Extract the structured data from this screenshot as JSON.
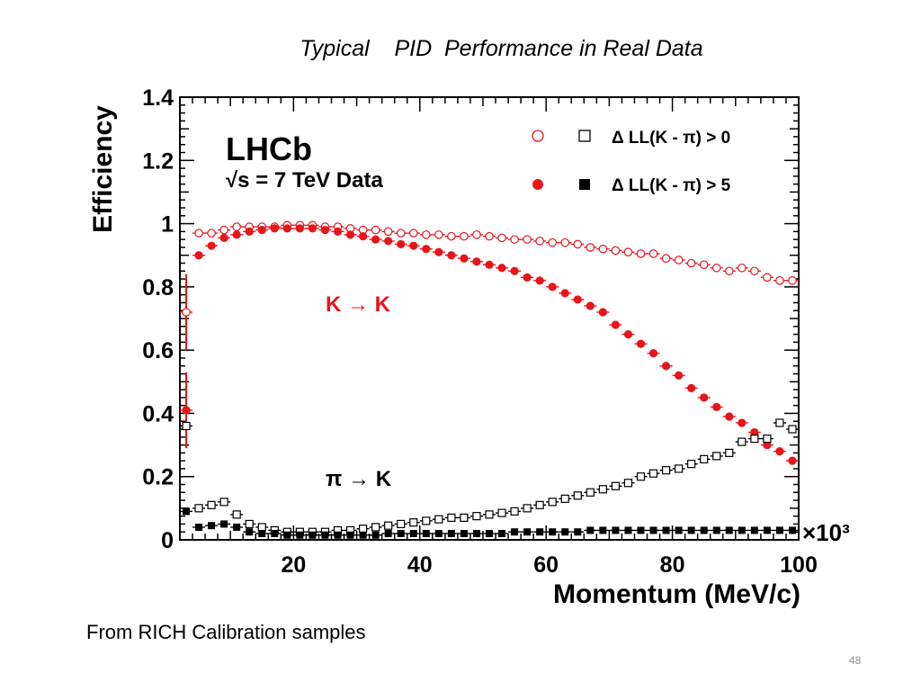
{
  "slide": {
    "title": "Typical    PID  Performance in Real Data",
    "footer": "From RICH Calibration samples",
    "page_number": "48"
  },
  "chart_data": {
    "type": "scatter",
    "xlabel": "Momentum (MeV/c)",
    "ylabel": "Efficiency",
    "x_scale_label": "×10³",
    "xlim": [
      2,
      100
    ],
    "ylim": [
      0,
      1.4
    ],
    "x_ticks": [
      20,
      40,
      60,
      80,
      100
    ],
    "x_tick_labels": [
      "20",
      "40",
      "60",
      "80",
      "100"
    ],
    "y_ticks": [
      0,
      0.2,
      0.4,
      0.6,
      0.8,
      1,
      1.2,
      1.4
    ],
    "y_tick_labels": [
      "0",
      "0.2",
      "0.4",
      "0.6",
      "0.8",
      "1",
      "1.2",
      "1.4"
    ],
    "experiment_label": "LHCb",
    "energy_label": "√s = 7 TeV Data",
    "annotations": [
      "K → K",
      "π → K"
    ],
    "legend": {
      "position": "top-right",
      "entries": [
        {
          "label": "Δ LL(K - π) > 0",
          "markers": [
            "open-circle",
            "open-square"
          ]
        },
        {
          "label": "Δ LL(K - π) > 5",
          "markers": [
            "filled-circle",
            "filled-square"
          ]
        }
      ]
    },
    "colors": {
      "kaon": "#e8141a",
      "pion": "#000000"
    },
    "series": [
      {
        "group": "K → K",
        "cut": "Δ LL(K - π) > 0",
        "marker": "open-circle",
        "color": "#e8141a",
        "x": [
          3,
          5,
          7,
          9,
          11,
          13,
          15,
          17,
          19,
          21,
          23,
          25,
          27,
          29,
          31,
          33,
          35,
          37,
          39,
          41,
          43,
          45,
          47,
          49,
          51,
          53,
          55,
          57,
          59,
          61,
          63,
          65,
          67,
          69,
          71,
          73,
          75,
          77,
          79,
          81,
          83,
          85,
          87,
          89,
          91,
          93,
          95,
          97,
          99
        ],
        "y": [
          0.72,
          0.97,
          0.97,
          0.98,
          0.99,
          0.99,
          0.99,
          0.99,
          0.995,
          0.995,
          0.995,
          0.99,
          0.99,
          0.985,
          0.98,
          0.98,
          0.975,
          0.97,
          0.97,
          0.965,
          0.965,
          0.96,
          0.96,
          0.965,
          0.96,
          0.955,
          0.95,
          0.95,
          0.945,
          0.94,
          0.94,
          0.935,
          0.925,
          0.92,
          0.915,
          0.91,
          0.905,
          0.905,
          0.89,
          0.885,
          0.875,
          0.87,
          0.86,
          0.85,
          0.86,
          0.85,
          0.83,
          0.82,
          0.82
        ]
      },
      {
        "group": "K → K",
        "cut": "Δ LL(K - π) > 5",
        "marker": "filled-circle",
        "color": "#e8141a",
        "x": [
          3,
          5,
          7,
          9,
          11,
          13,
          15,
          17,
          19,
          21,
          23,
          25,
          27,
          29,
          31,
          33,
          35,
          37,
          39,
          41,
          43,
          45,
          47,
          49,
          51,
          53,
          55,
          57,
          59,
          61,
          63,
          65,
          67,
          69,
          71,
          73,
          75,
          77,
          79,
          81,
          83,
          85,
          87,
          89,
          91,
          93,
          95,
          97,
          99
        ],
        "y": [
          0.41,
          0.9,
          0.93,
          0.955,
          0.965,
          0.975,
          0.98,
          0.985,
          0.985,
          0.985,
          0.985,
          0.98,
          0.975,
          0.965,
          0.96,
          0.95,
          0.945,
          0.935,
          0.93,
          0.92,
          0.91,
          0.9,
          0.89,
          0.88,
          0.87,
          0.86,
          0.85,
          0.83,
          0.82,
          0.8,
          0.78,
          0.76,
          0.74,
          0.72,
          0.68,
          0.65,
          0.62,
          0.59,
          0.55,
          0.52,
          0.48,
          0.45,
          0.42,
          0.39,
          0.37,
          0.34,
          0.3,
          0.28,
          0.25
        ]
      },
      {
        "group": "π → K",
        "cut": "Δ LL(K - π) > 0",
        "marker": "open-square",
        "color": "#000000",
        "x": [
          3,
          5,
          7,
          9,
          11,
          13,
          15,
          17,
          19,
          21,
          23,
          25,
          27,
          29,
          31,
          33,
          35,
          37,
          39,
          41,
          43,
          45,
          47,
          49,
          51,
          53,
          55,
          57,
          59,
          61,
          63,
          65,
          67,
          69,
          71,
          73,
          75,
          77,
          79,
          81,
          83,
          85,
          87,
          89,
          91,
          93,
          95,
          97,
          99
        ],
        "y": [
          0.36,
          0.1,
          0.11,
          0.12,
          0.08,
          0.05,
          0.04,
          0.03,
          0.025,
          0.025,
          0.025,
          0.025,
          0.03,
          0.03,
          0.035,
          0.04,
          0.045,
          0.05,
          0.055,
          0.06,
          0.065,
          0.07,
          0.07,
          0.075,
          0.08,
          0.085,
          0.09,
          0.1,
          0.11,
          0.12,
          0.13,
          0.14,
          0.15,
          0.16,
          0.17,
          0.18,
          0.2,
          0.21,
          0.22,
          0.225,
          0.24,
          0.255,
          0.265,
          0.275,
          0.31,
          0.32,
          0.32,
          0.37,
          0.35
        ]
      },
      {
        "group": "π → K",
        "cut": "Δ LL(K - π) > 5",
        "marker": "filled-square",
        "color": "#000000",
        "x": [
          3,
          5,
          7,
          9,
          11,
          13,
          15,
          17,
          19,
          21,
          23,
          25,
          27,
          29,
          31,
          33,
          35,
          37,
          39,
          41,
          43,
          45,
          47,
          49,
          51,
          53,
          55,
          57,
          59,
          61,
          63,
          65,
          67,
          69,
          71,
          73,
          75,
          77,
          79,
          81,
          83,
          85,
          87,
          89,
          91,
          93,
          95,
          97,
          99
        ],
        "y": [
          0.09,
          0.04,
          0.045,
          0.05,
          0.04,
          0.025,
          0.02,
          0.02,
          0.015,
          0.015,
          0.015,
          0.015,
          0.015,
          0.015,
          0.015,
          0.015,
          0.02,
          0.02,
          0.02,
          0.02,
          0.02,
          0.02,
          0.02,
          0.02,
          0.02,
          0.02,
          0.025,
          0.025,
          0.025,
          0.025,
          0.025,
          0.025,
          0.03,
          0.03,
          0.03,
          0.03,
          0.03,
          0.03,
          0.03,
          0.03,
          0.03,
          0.03,
          0.03,
          0.03,
          0.03,
          0.03,
          0.03,
          0.03,
          0.03
        ]
      }
    ]
  }
}
